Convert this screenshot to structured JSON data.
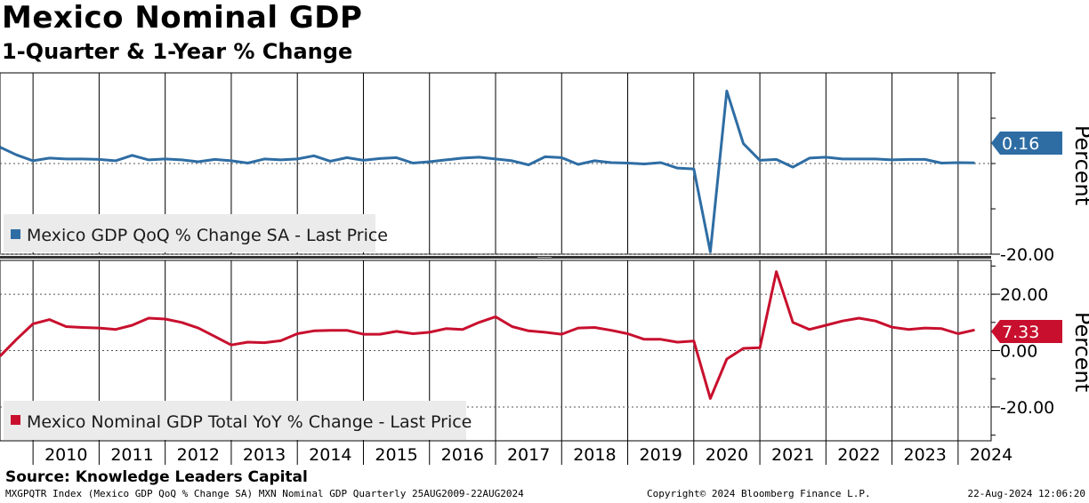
{
  "header": {
    "title": "Mexico Nominal GDP",
    "subtitle": "1-Quarter & 1-Year % Change"
  },
  "footer": {
    "source": "Source: Knowledge Leaders Capital",
    "info": "MXGPQTR Index (Mexico GDP QoQ % Change SA) MXN Nominal GDP  Quarterly 25AUG2009-22AUG2024",
    "copyright": "Copyright© 2024 Bloomberg Finance L.P.",
    "timestamp": "22-Aug-2024 12:06:20"
  },
  "chart_data": [
    {
      "type": "line",
      "panel": "top",
      "series": [
        {
          "name": "Mexico GDP QoQ % Change SA - Last Price",
          "color": "#2e6da4",
          "x": [
            2009.5,
            2009.75,
            2010,
            2010.25,
            2010.5,
            2010.75,
            2011,
            2011.25,
            2011.5,
            2011.75,
            2012,
            2012.25,
            2012.5,
            2012.75,
            2013,
            2013.25,
            2013.5,
            2013.75,
            2014,
            2014.25,
            2014.5,
            2014.75,
            2015,
            2015.25,
            2015.5,
            2015.75,
            2016,
            2016.25,
            2016.5,
            2016.75,
            2017,
            2017.25,
            2017.5,
            2017.75,
            2018,
            2018.25,
            2018.5,
            2018.75,
            2019,
            2019.25,
            2019.5,
            2019.75,
            2020,
            2020.25,
            2020.5,
            2020.75,
            2021,
            2021.25,
            2021.5,
            2021.75,
            2022,
            2022.25,
            2022.5,
            2022.75,
            2023,
            2023.25,
            2023.5,
            2023.75,
            2024,
            2024.25
          ],
          "values": [
            3.6,
            1.9,
            0.6,
            1.2,
            1.0,
            1.0,
            0.9,
            0.6,
            1.8,
            0.8,
            1.0,
            0.8,
            0.4,
            0.9,
            0.6,
            0.1,
            1.0,
            0.8,
            1.0,
            1.7,
            0.5,
            1.3,
            0.7,
            1.1,
            1.3,
            0.1,
            0.4,
            0.8,
            1.2,
            1.4,
            1.0,
            0.6,
            -0.3,
            1.5,
            1.3,
            -0.2,
            0.6,
            0.2,
            0.1,
            -0.1,
            0.2,
            -1.0,
            -1.2,
            -19.5,
            16.0,
            4.4,
            0.7,
            0.9,
            -0.8,
            1.2,
            1.4,
            1.0,
            1.0,
            1.0,
            0.8,
            0.9,
            0.9,
            0.1,
            0.2,
            0.16
          ]
        }
      ],
      "last_value_label": "0.16",
      "ylabel": "Percent",
      "tick_labels": [
        "-20.00"
      ],
      "ylim": [
        -20,
        20
      ]
    },
    {
      "type": "line",
      "panel": "bottom",
      "series": [
        {
          "name": "Mexico Nominal GDP Total YoY % Change - Last Price",
          "color": "#c8102e",
          "x": [
            2009.5,
            2009.75,
            2010,
            2010.25,
            2010.5,
            2010.75,
            2011,
            2011.25,
            2011.5,
            2011.75,
            2012,
            2012.25,
            2012.5,
            2012.75,
            2013,
            2013.25,
            2013.5,
            2013.75,
            2014,
            2014.25,
            2014.5,
            2014.75,
            2015,
            2015.25,
            2015.5,
            2015.75,
            2016,
            2016.25,
            2016.5,
            2016.75,
            2017,
            2017.25,
            2017.5,
            2017.75,
            2018,
            2018.25,
            2018.5,
            2018.75,
            2019,
            2019.25,
            2019.5,
            2019.75,
            2020,
            2020.25,
            2020.5,
            2020.75,
            2021,
            2021.25,
            2021.5,
            2021.75,
            2022,
            2022.25,
            2022.5,
            2022.75,
            2023,
            2023.25,
            2023.5,
            2023.75,
            2024,
            2024.25
          ],
          "values": [
            -2.0,
            4.0,
            9.5,
            11.0,
            8.5,
            8.2,
            8.0,
            7.5,
            9.0,
            11.5,
            11.2,
            10.0,
            8.0,
            5.0,
            2.0,
            3.0,
            2.8,
            3.5,
            6.0,
            7.0,
            7.2,
            7.2,
            5.8,
            5.8,
            6.8,
            6.0,
            6.5,
            7.8,
            7.5,
            10.0,
            12.0,
            8.5,
            7.0,
            6.5,
            5.8,
            8.0,
            8.2,
            7.2,
            6.0,
            4.0,
            4.0,
            3.0,
            3.4,
            -17.0,
            -3.0,
            0.8,
            1.0,
            28.0,
            10.0,
            7.5,
            9.0,
            10.5,
            11.5,
            10.5,
            8.3,
            7.5,
            8.0,
            7.8,
            6.0,
            7.33
          ]
        }
      ],
      "last_value_label": "7.33",
      "ylabel": "Percent",
      "tick_labels": [
        "20.00",
        "0.00",
        "-20.00"
      ],
      "ylim": [
        -32,
        32
      ]
    }
  ],
  "x_axis": {
    "years": [
      "2010",
      "2011",
      "2012",
      "2013",
      "2014",
      "2015",
      "2016",
      "2017",
      "2018",
      "2019",
      "2020",
      "2021",
      "2022",
      "2023",
      "2024"
    ],
    "range": [
      2009.5,
      2024.5
    ]
  }
}
